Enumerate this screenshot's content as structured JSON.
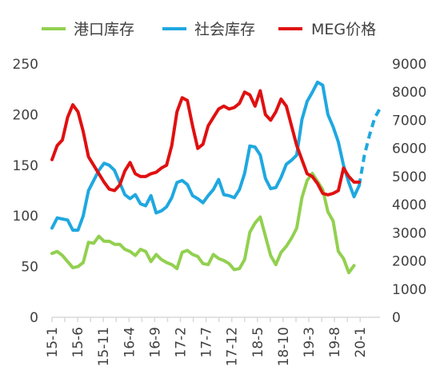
{
  "chart_data": {
    "type": "line",
    "title": "",
    "legend_position": "top",
    "grid": false,
    "x_ticks": [
      "15-1",
      "15-6",
      "15-11",
      "16-4",
      "16-9",
      "17-2",
      "17-7",
      "17-12",
      "18-5",
      "18-10",
      "19-3",
      "19-8",
      "20-1"
    ],
    "y_left": {
      "range": [
        0,
        250
      ],
      "ticks": [
        0,
        50,
        100,
        150,
        200,
        250
      ]
    },
    "y_right": {
      "range": [
        0,
        9000
      ],
      "ticks": [
        0,
        1000,
        2000,
        3000,
        4000,
        5000,
        6000,
        7000,
        8000,
        9000
      ]
    },
    "series": [
      {
        "name": "港口库存",
        "axis": "left",
        "color": "#92d050",
        "points": [
          [
            0,
            63
          ],
          [
            0.7,
            65
          ],
          [
            1.4,
            61
          ],
          [
            2.1,
            55
          ],
          [
            2.8,
            49
          ],
          [
            3.5,
            50
          ],
          [
            4.2,
            54
          ],
          [
            4.9,
            74
          ],
          [
            5.6,
            73
          ],
          [
            6.3,
            80
          ],
          [
            7,
            75
          ],
          [
            7.7,
            75
          ],
          [
            8.4,
            72
          ],
          [
            9.1,
            72
          ],
          [
            9.8,
            67
          ],
          [
            10.5,
            65
          ],
          [
            11.2,
            61
          ],
          [
            11.9,
            67
          ],
          [
            12.6,
            65
          ],
          [
            13.3,
            55
          ],
          [
            14,
            62
          ],
          [
            14.7,
            57
          ],
          [
            15.4,
            54
          ],
          [
            16.1,
            52
          ],
          [
            16.8,
            48
          ],
          [
            17.5,
            64
          ],
          [
            18.2,
            66
          ],
          [
            18.9,
            62
          ],
          [
            19.6,
            60
          ],
          [
            20.3,
            53
          ],
          [
            21,
            52
          ],
          [
            21.7,
            62
          ],
          [
            22.4,
            58
          ],
          [
            23.1,
            56
          ],
          [
            23.8,
            53
          ],
          [
            24.5,
            47
          ],
          [
            25.2,
            48
          ],
          [
            25.9,
            57
          ],
          [
            26.6,
            84
          ],
          [
            27.3,
            93
          ],
          [
            28,
            99
          ],
          [
            28.7,
            80
          ],
          [
            29.4,
            61
          ],
          [
            30.1,
            52
          ],
          [
            30.8,
            64
          ],
          [
            31.5,
            70
          ],
          [
            32.2,
            78
          ],
          [
            32.9,
            88
          ],
          [
            33.6,
            118
          ],
          [
            34.3,
            135
          ],
          [
            35,
            142
          ],
          [
            35.7,
            134
          ],
          [
            36.4,
            126
          ],
          [
            37.1,
            104
          ],
          [
            37.8,
            95
          ],
          [
            38.5,
            65
          ],
          [
            39.2,
            58
          ],
          [
            39.9,
            44
          ],
          [
            40.6,
            51
          ]
        ]
      },
      {
        "name": "社会库存",
        "axis": "left",
        "color": "#1fa8e0",
        "points": [
          [
            0,
            88
          ],
          [
            0.7,
            98
          ],
          [
            1.4,
            97
          ],
          [
            2.1,
            96
          ],
          [
            2.8,
            86
          ],
          [
            3.5,
            86
          ],
          [
            4.2,
            100
          ],
          [
            4.9,
            125
          ],
          [
            5.6,
            135
          ],
          [
            6.3,
            145
          ],
          [
            7,
            152
          ],
          [
            7.7,
            150
          ],
          [
            8.4,
            145
          ],
          [
            9.1,
            133
          ],
          [
            9.8,
            121
          ],
          [
            10.5,
            117
          ],
          [
            11.2,
            121
          ],
          [
            11.9,
            112
          ],
          [
            12.6,
            110
          ],
          [
            13.3,
            120
          ],
          [
            14,
            103
          ],
          [
            14.7,
            105
          ],
          [
            15.4,
            109
          ],
          [
            16.1,
            118
          ],
          [
            16.8,
            133
          ],
          [
            17.5,
            135
          ],
          [
            18.2,
            131
          ],
          [
            18.9,
            120
          ],
          [
            19.6,
            117
          ],
          [
            20.3,
            113
          ],
          [
            21,
            120
          ],
          [
            21.7,
            126
          ],
          [
            22.4,
            136
          ],
          [
            23.1,
            121
          ],
          [
            23.8,
            120
          ],
          [
            24.5,
            118
          ],
          [
            25.2,
            126
          ],
          [
            25.9,
            142
          ],
          [
            26.6,
            169
          ],
          [
            27.3,
            168
          ],
          [
            28,
            160
          ],
          [
            28.7,
            137
          ],
          [
            29.4,
            127
          ],
          [
            30.1,
            128
          ],
          [
            30.8,
            138
          ],
          [
            31.5,
            151
          ],
          [
            32.2,
            155
          ],
          [
            32.9,
            160
          ],
          [
            33.6,
            195
          ],
          [
            34.3,
            213
          ],
          [
            35,
            222
          ],
          [
            35.7,
            232
          ],
          [
            36.4,
            229
          ],
          [
            37.1,
            200
          ],
          [
            37.8,
            188
          ],
          [
            38.5,
            173
          ],
          [
            39.2,
            150
          ],
          [
            39.9,
            133
          ],
          [
            40.6,
            119
          ],
          [
            41.3,
            130
          ]
        ],
        "projection": [
          [
            41.3,
            130
          ],
          [
            42,
            160
          ],
          [
            42.7,
            180
          ],
          [
            43.4,
            197
          ],
          [
            44.1,
            206
          ]
        ]
      },
      {
        "name": "MEG价格",
        "axis": "right",
        "color": "#e01010",
        "points": [
          [
            0,
            5600
          ],
          [
            0.7,
            6100
          ],
          [
            1.4,
            6300
          ],
          [
            2.1,
            7100
          ],
          [
            2.8,
            7550
          ],
          [
            3.5,
            7300
          ],
          [
            4.2,
            6600
          ],
          [
            4.9,
            5700
          ],
          [
            5.6,
            5400
          ],
          [
            6.3,
            5100
          ],
          [
            7,
            4800
          ],
          [
            7.7,
            4550
          ],
          [
            8.4,
            4500
          ],
          [
            9.1,
            4700
          ],
          [
            9.8,
            5200
          ],
          [
            10.5,
            5500
          ],
          [
            11.2,
            5100
          ],
          [
            11.9,
            5000
          ],
          [
            12.6,
            5000
          ],
          [
            13.3,
            5100
          ],
          [
            14,
            5150
          ],
          [
            14.7,
            5300
          ],
          [
            15.4,
            5400
          ],
          [
            16.1,
            6100
          ],
          [
            16.8,
            7300
          ],
          [
            17.5,
            7800
          ],
          [
            18.2,
            7700
          ],
          [
            18.9,
            6800
          ],
          [
            19.6,
            6000
          ],
          [
            20.3,
            6150
          ],
          [
            21,
            6800
          ],
          [
            21.7,
            7100
          ],
          [
            22.4,
            7400
          ],
          [
            23.1,
            7500
          ],
          [
            23.8,
            7400
          ],
          [
            24.5,
            7450
          ],
          [
            25.2,
            7600
          ],
          [
            25.9,
            8000
          ],
          [
            26.6,
            7900
          ],
          [
            27.3,
            7500
          ],
          [
            28,
            8050
          ],
          [
            28.7,
            7200
          ],
          [
            29.4,
            7000
          ],
          [
            30.1,
            7300
          ],
          [
            30.8,
            7750
          ],
          [
            31.5,
            7500
          ],
          [
            32.2,
            6800
          ],
          [
            32.9,
            6100
          ],
          [
            33.6,
            5600
          ],
          [
            34.3,
            5100
          ],
          [
            35,
            5000
          ],
          [
            35.7,
            4750
          ],
          [
            36.4,
            4400
          ],
          [
            37.1,
            4350
          ],
          [
            37.8,
            4400
          ],
          [
            38.5,
            4500
          ],
          [
            39.2,
            5300
          ],
          [
            39.9,
            5000
          ],
          [
            40.6,
            4800
          ],
          [
            41.3,
            4800
          ]
        ]
      }
    ]
  }
}
